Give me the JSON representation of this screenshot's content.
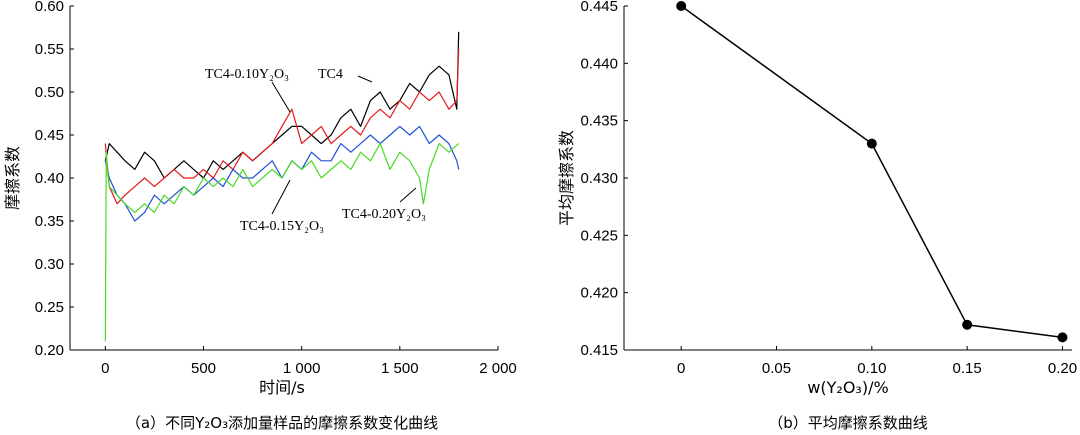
{
  "chart_data": [
    {
      "type": "line",
      "caption": "（a）不同Y₂O₃添加量样品的摩擦系数变化曲线",
      "xlabel": "时间/s",
      "ylabel": "摩擦系数",
      "xlim": [
        -180,
        2000
      ],
      "ylim": [
        0.2,
        0.6
      ],
      "xticks": [
        "0",
        "500",
        "1 000",
        "1 500",
        "2 000"
      ],
      "yticks": [
        "0.20",
        "0.25",
        "0.30",
        "0.35",
        "0.40",
        "0.45",
        "0.50",
        "0.55",
        "0.60"
      ],
      "grid": false,
      "series": [
        {
          "name": "TC4",
          "color": "#000000",
          "x": [
            0,
            20,
            60,
            100,
            150,
            200,
            250,
            300,
            350,
            400,
            450,
            500,
            550,
            600,
            650,
            700,
            750,
            800,
            850,
            900,
            950,
            1000,
            1050,
            1100,
            1150,
            1200,
            1250,
            1300,
            1350,
            1400,
            1450,
            1500,
            1550,
            1600,
            1650,
            1700,
            1750,
            1790,
            1800
          ],
          "y": [
            0.42,
            0.44,
            0.43,
            0.42,
            0.41,
            0.43,
            0.42,
            0.4,
            0.41,
            0.42,
            0.41,
            0.4,
            0.42,
            0.41,
            0.42,
            0.43,
            0.42,
            0.43,
            0.44,
            0.45,
            0.46,
            0.46,
            0.45,
            0.44,
            0.45,
            0.47,
            0.48,
            0.46,
            0.49,
            0.5,
            0.48,
            0.49,
            0.51,
            0.5,
            0.52,
            0.53,
            0.52,
            0.48,
            0.57
          ]
        },
        {
          "name": "TC4-0.10Y₂O₃",
          "color": "#e31a1c",
          "x": [
            0,
            20,
            60,
            100,
            150,
            200,
            250,
            300,
            350,
            400,
            450,
            500,
            550,
            600,
            650,
            700,
            750,
            800,
            850,
            900,
            950,
            1000,
            1050,
            1100,
            1150,
            1200,
            1250,
            1300,
            1350,
            1400,
            1450,
            1500,
            1550,
            1600,
            1650,
            1700,
            1750,
            1790,
            1800
          ],
          "y": [
            0.44,
            0.39,
            0.37,
            0.38,
            0.39,
            0.4,
            0.39,
            0.4,
            0.41,
            0.4,
            0.4,
            0.41,
            0.4,
            0.42,
            0.41,
            0.43,
            0.42,
            0.43,
            0.44,
            0.46,
            0.48,
            0.44,
            0.45,
            0.46,
            0.44,
            0.45,
            0.46,
            0.45,
            0.47,
            0.48,
            0.47,
            0.49,
            0.48,
            0.5,
            0.49,
            0.5,
            0.48,
            0.49,
            0.55
          ]
        },
        {
          "name": "TC4-0.15Y₂O₃",
          "color": "#1f4fd8",
          "x": [
            0,
            20,
            60,
            100,
            150,
            200,
            250,
            300,
            350,
            400,
            450,
            500,
            550,
            600,
            650,
            700,
            750,
            800,
            850,
            900,
            950,
            1000,
            1050,
            1100,
            1150,
            1200,
            1250,
            1300,
            1350,
            1400,
            1450,
            1500,
            1550,
            1600,
            1650,
            1700,
            1750,
            1790,
            1800
          ],
          "y": [
            0.42,
            0.4,
            0.38,
            0.37,
            0.35,
            0.36,
            0.38,
            0.37,
            0.38,
            0.39,
            0.38,
            0.39,
            0.4,
            0.39,
            0.41,
            0.4,
            0.4,
            0.41,
            0.42,
            0.4,
            0.42,
            0.41,
            0.43,
            0.42,
            0.42,
            0.44,
            0.43,
            0.44,
            0.45,
            0.44,
            0.45,
            0.46,
            0.45,
            0.46,
            0.44,
            0.45,
            0.44,
            0.42,
            0.41
          ]
        },
        {
          "name": "TC4-0.20Y₂O₃",
          "color": "#4cd826",
          "x": [
            0,
            5,
            10,
            20,
            60,
            100,
            150,
            200,
            250,
            300,
            350,
            400,
            450,
            500,
            550,
            600,
            650,
            700,
            750,
            800,
            850,
            900,
            950,
            1000,
            1050,
            1100,
            1150,
            1200,
            1250,
            1300,
            1350,
            1400,
            1450,
            1500,
            1550,
            1600,
            1620,
            1650,
            1700,
            1750,
            1800
          ],
          "y": [
            0.21,
            0.43,
            0.41,
            0.39,
            0.38,
            0.37,
            0.36,
            0.37,
            0.36,
            0.38,
            0.37,
            0.39,
            0.38,
            0.4,
            0.39,
            0.4,
            0.39,
            0.41,
            0.39,
            0.4,
            0.41,
            0.4,
            0.42,
            0.41,
            0.42,
            0.4,
            0.41,
            0.42,
            0.41,
            0.43,
            0.42,
            0.44,
            0.41,
            0.43,
            0.42,
            0.4,
            0.37,
            0.41,
            0.44,
            0.43,
            0.44
          ]
        }
      ],
      "annotations": [
        {
          "text": "TC4-0.10Y₂O₃",
          "series": "TC4-0.10Y₂O₃"
        },
        {
          "text": "TC4",
          "series": "TC4"
        },
        {
          "text": "TC4-0.15Y₂O₃",
          "series": "TC4-0.15Y₂O₃"
        },
        {
          "text": "TC4-0.20Y₂O₃",
          "series": "TC4-0.20Y₂O₃"
        }
      ]
    },
    {
      "type": "line",
      "caption": "（b）平均摩擦系数曲线",
      "xlabel": "w(Y₂O₃)/%",
      "ylabel": "平均摩擦系数",
      "xlim": [
        -0.03,
        0.205
      ],
      "ylim": [
        0.415,
        0.445
      ],
      "xticks": [
        "0",
        "0.05",
        "0.10",
        "0.15",
        "0.20"
      ],
      "yticks": [
        "0.415",
        "0.420",
        "0.425",
        "0.430",
        "0.435",
        "0.440",
        "0.445"
      ],
      "grid": false,
      "series": [
        {
          "color": "#000000",
          "marker": "circle",
          "x": [
            0,
            0.1,
            0.15,
            0.2
          ],
          "y": [
            0.445,
            0.433,
            0.4172,
            0.4161
          ]
        }
      ]
    }
  ]
}
